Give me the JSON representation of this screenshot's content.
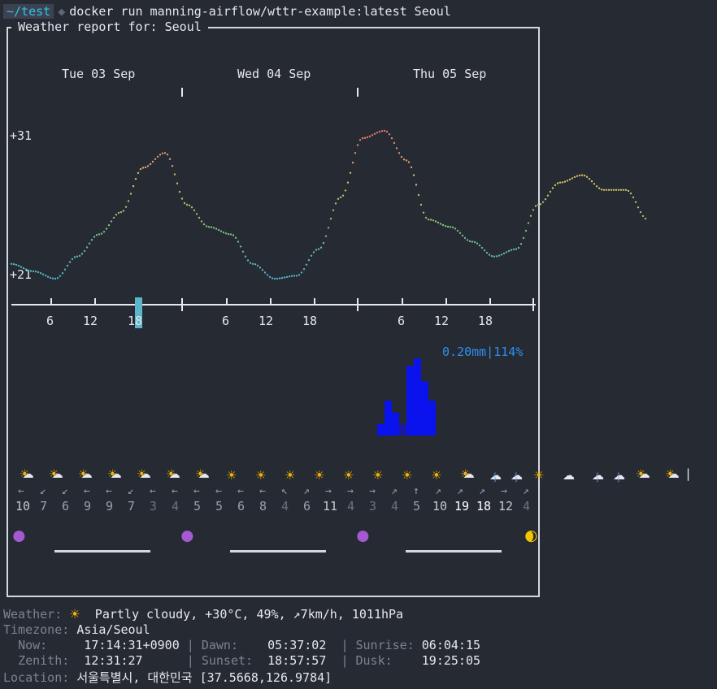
{
  "prompt": {
    "dir": "~/test",
    "command": "docker run manning-airflow/wttr-example:latest Seoul"
  },
  "frame_title": "Weather report for: Seoul",
  "days": [
    "Tue 03 Sep",
    "Wed 04 Sep",
    "Thu 05 Sep"
  ],
  "temp_axis": {
    "max": "+31",
    "min": "+21"
  },
  "hour_ticks": [
    "6",
    "12",
    "18",
    "6",
    "12",
    "18",
    "6",
    "12",
    "18"
  ],
  "current_hour_marker": "18",
  "precip_label": "0.20mm|114%",
  "wind_arrows": [
    "←",
    "↙",
    "↙",
    "←",
    "←",
    "↙",
    "←",
    "←",
    "←",
    "←",
    "←",
    "←",
    "↖",
    "↗",
    "→",
    "→",
    "→",
    "↗",
    "↑",
    "↗",
    "↗",
    "↗",
    "→",
    "↗"
  ],
  "wind_speeds": [
    "10",
    "7",
    "6",
    "9",
    "9",
    "7",
    "3",
    "4",
    "5",
    "5",
    "6",
    "8",
    "4",
    "6",
    "11",
    "4",
    "3",
    "4",
    "5",
    "10",
    "19",
    "18",
    "12",
    "4"
  ],
  "moon_icons": [
    "🌑",
    "🌑",
    "🌑",
    "🌒"
  ],
  "chart_data": {
    "type": "line",
    "title": "",
    "xlabel": "",
    "ylabel": "",
    "ylim": [
      21,
      31
    ],
    "hours_per_point": 3,
    "series": [
      {
        "values": [
          22,
          21.5,
          21,
          22.5,
          24,
          25.5,
          28.5,
          29.5,
          26,
          24.5,
          24,
          22,
          21,
          21.2,
          23,
          26.5,
          30.5,
          31,
          29,
          25,
          24.5,
          23.5,
          22.5,
          23,
          26,
          27.5,
          28,
          27,
          27,
          25
        ]
      }
    ]
  },
  "chart2": {
    "type": "bar",
    "title": "",
    "xlabel": "",
    "ylabel": "",
    "ylim": [
      0,
      0.2
    ],
    "bars": [
      {
        "day": 3,
        "index": 2,
        "value": 0.03
      },
      {
        "day": 3,
        "index": 3,
        "value": 0.09
      },
      {
        "day": 3,
        "index": 4,
        "value": 0.06
      },
      {
        "day": 3,
        "index": 5,
        "value": 0.03
      },
      {
        "day": 3,
        "index": 6,
        "value": 0.18
      },
      {
        "day": 3,
        "index": 7,
        "value": 0.2
      },
      {
        "day": 3,
        "index": 8,
        "value": 0.14
      },
      {
        "day": 3,
        "index": 9,
        "value": 0.09
      }
    ]
  },
  "status": {
    "weather_label": "Weather:",
    "weather_value": "Partly cloudy, +30°C, 49%, ↗7km/h, 1011hPa",
    "timezone_label": "Timezone:",
    "timezone_value": "Asia/Seoul",
    "now_label": "Now:",
    "now_value": "17:14:31+0900",
    "dawn_label": "Dawn:",
    "dawn_value": "05:37:02",
    "sunrise_label": "Sunrise:",
    "sunrise_value": "06:04:15",
    "zenith_label": "Zenith:",
    "zenith_value": "12:31:27",
    "sunset_label": "Sunset:",
    "sunset_value": "18:57:57",
    "dusk_label": "Dusk:",
    "dusk_value": "19:25:05",
    "location_label": "Location:",
    "location_value": "서울특별시, 대한민국 [37.5668,126.9784]"
  }
}
